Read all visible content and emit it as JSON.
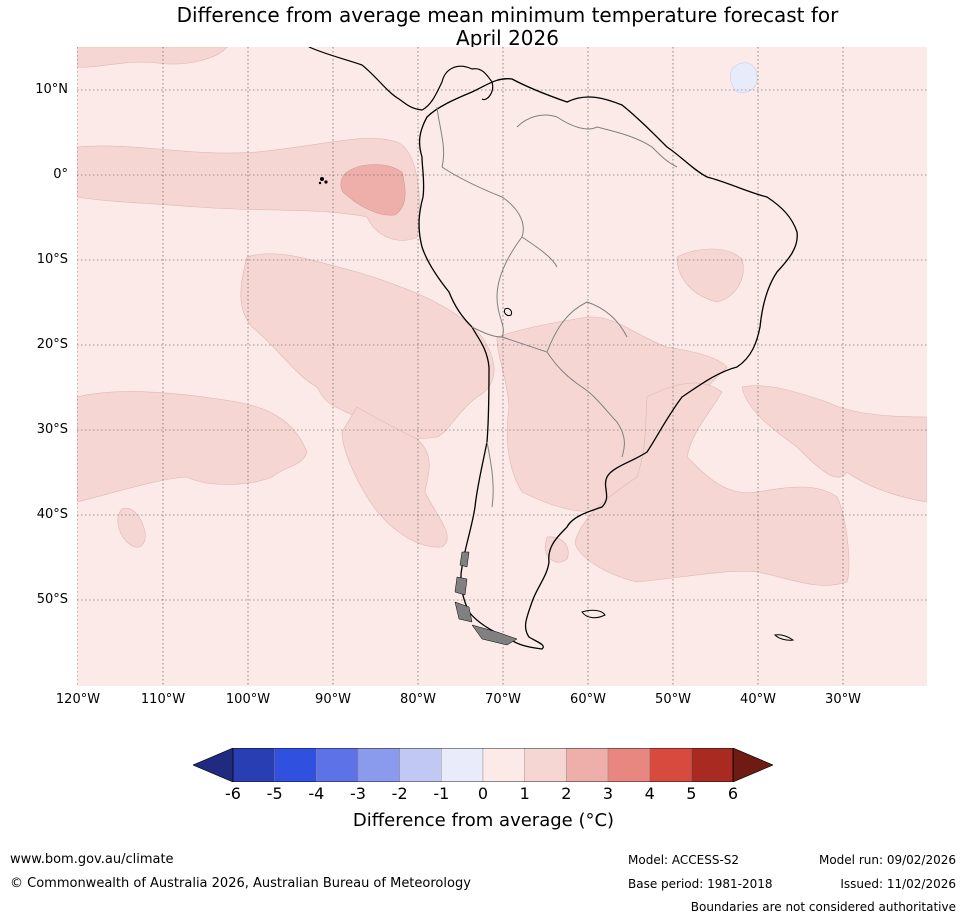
{
  "title_line1": "Difference from average mean minimum temperature forecast for",
  "title_line2": "April 2026",
  "map": {
    "lat_labels": [
      "10°N",
      "0°",
      "10°S",
      "20°S",
      "30°S",
      "40°S",
      "50°S"
    ],
    "lon_labels": [
      "120°W",
      "110°W",
      "100°W",
      "90°W",
      "80°W",
      "70°W",
      "60°W",
      "50°W",
      "40°W",
      "30°W"
    ],
    "colors": {
      "bg_0_1": "#fbeae8",
      "c_1_2": "#f5d6d3",
      "c_2_3": "#eeaeaa",
      "cm_1_0": "#e8ecfa",
      "coast": "#000000",
      "border": "#808080"
    }
  },
  "colorbar": {
    "ticks": [
      "-6",
      "-5",
      "-4",
      "-3",
      "-2",
      "-1",
      "0",
      "1",
      "2",
      "3",
      "4",
      "5",
      "6"
    ],
    "colors": [
      "#1f2a80",
      "#2a3eb3",
      "#3050e0",
      "#5c72e6",
      "#8a9aec",
      "#c2c8f4",
      "#e9ebfa",
      "#fbeae8",
      "#f5d6d3",
      "#eeaeaa",
      "#e88680",
      "#d84a3e",
      "#a82a20",
      "#701a14"
    ],
    "label": "Difference from average ($^\\circ$C)",
    "label_text": "Difference from average (",
    "label_unit": "°C)"
  },
  "footer": {
    "website": "www.bom.gov.au/climate",
    "copyright": "© Commonwealth of Australia 2026, Australian Bureau of Meteorology",
    "model": "Model: ACCESS-S2",
    "model_run": "Model run: 09/02/2026",
    "base_period": "Base period: 1981-2018",
    "issued": "Issued: 11/02/2026",
    "disclaimer": "Boundaries are not considered authoritative"
  }
}
